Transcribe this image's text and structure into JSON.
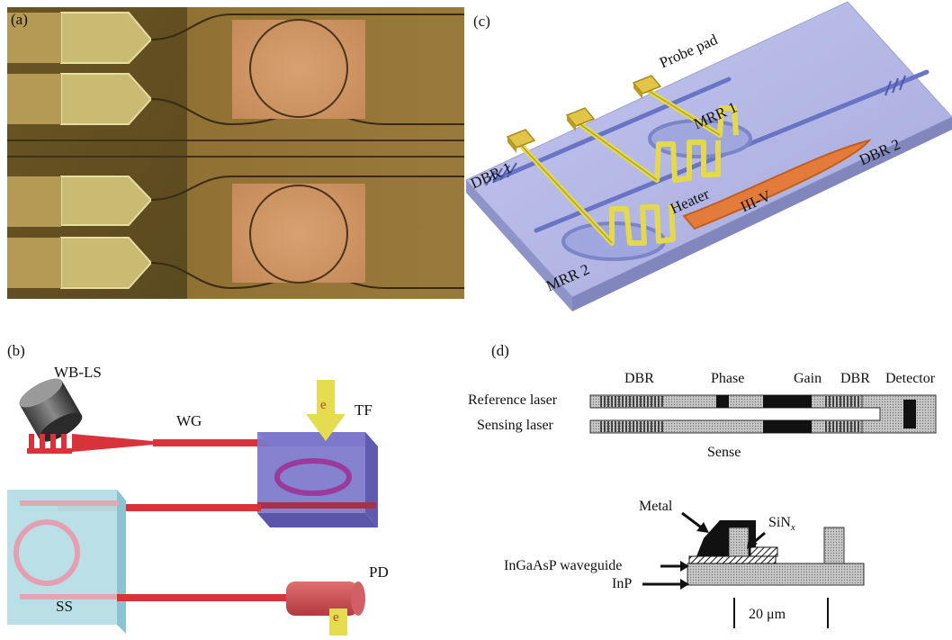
{
  "panels": {
    "a": {
      "label": "(a)"
    },
    "b": {
      "label": "(b)",
      "wb_ls": "WB-LS",
      "wg": "WG",
      "tf": "TF",
      "ss": "SS",
      "pd": "PD",
      "electron": "e"
    },
    "c": {
      "label": "(c)",
      "probe_pad": "Probe pad",
      "mrr1": "MRR 1",
      "mrr2": "MRR 2",
      "dbr1": "DBR 1",
      "dbr2": "DBR 2",
      "heater": "Heater",
      "iii_v": "III-V"
    },
    "d": {
      "label": "(d)",
      "dbr_left": "DBR",
      "phase": "Phase",
      "gain": "Gain",
      "dbr_right": "DBR",
      "detector": "Detector",
      "reference_laser": "Reference laser",
      "sensing_laser": "Sensing laser",
      "sense": "Sense",
      "metal": "Metal",
      "sinx_base": "SiN",
      "sinx_sub": "x",
      "ingaasp": "InGaAsP waveguide",
      "inp": "InP",
      "scale": "20 μm"
    }
  },
  "colors": {
    "photo_dark": "#6f5a28",
    "photo_light": "#8d7134",
    "pad_gold": "#c8b56a",
    "chip_lavender": "#aab0dd",
    "waveguide_red": "#d8323a",
    "heater_yellow": "#e6dc55",
    "iii_v_orange": "#e07a3a"
  }
}
